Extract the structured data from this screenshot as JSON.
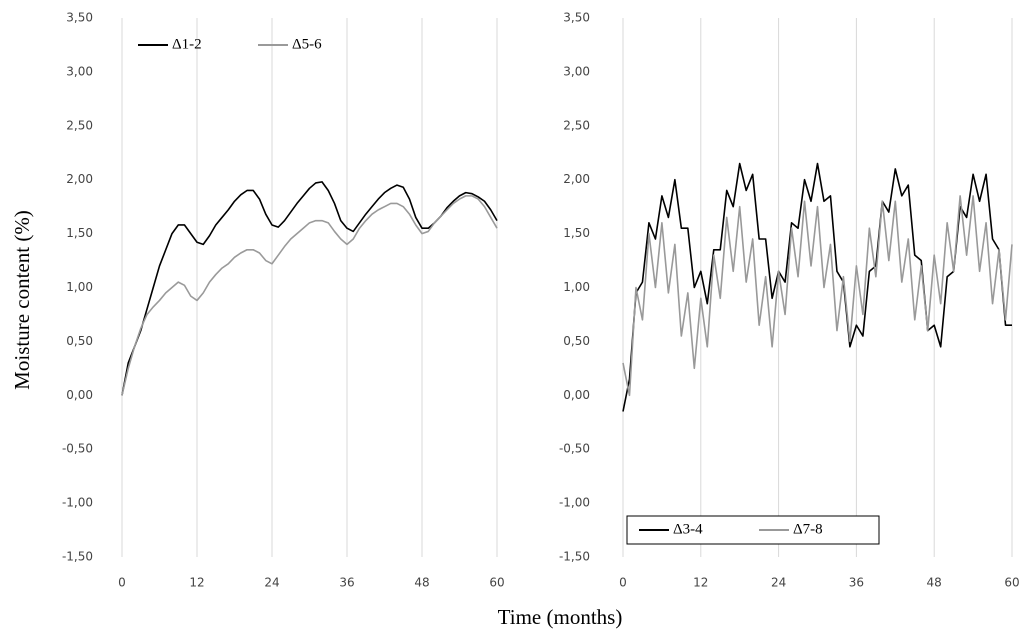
{
  "xlabel": "Time (months)",
  "ylabel": "Moisture content (%)",
  "chart_data": [
    {
      "type": "line",
      "x": [
        0,
        1,
        2,
        3,
        4,
        5,
        6,
        7,
        8,
        9,
        10,
        11,
        12,
        13,
        14,
        15,
        16,
        17,
        18,
        19,
        20,
        21,
        22,
        23,
        24,
        25,
        26,
        27,
        28,
        29,
        30,
        31,
        32,
        33,
        34,
        35,
        36,
        37,
        38,
        39,
        40,
        41,
        42,
        43,
        44,
        45,
        46,
        47,
        48,
        49,
        50,
        51,
        52,
        53,
        54,
        55,
        56,
        57,
        58,
        59,
        60
      ],
      "series": [
        {
          "name": "Δ1-2",
          "color": "#000000",
          "values": [
            0,
            0.3,
            0.45,
            0.6,
            0.8,
            1.0,
            1.2,
            1.35,
            1.5,
            1.58,
            1.58,
            1.5,
            1.42,
            1.4,
            1.48,
            1.58,
            1.65,
            1.72,
            1.8,
            1.86,
            1.9,
            1.9,
            1.82,
            1.68,
            1.58,
            1.56,
            1.62,
            1.7,
            1.78,
            1.85,
            1.92,
            1.97,
            1.98,
            1.9,
            1.78,
            1.62,
            1.55,
            1.52,
            1.6,
            1.68,
            1.75,
            1.82,
            1.88,
            1.92,
            1.95,
            1.93,
            1.82,
            1.65,
            1.55,
            1.55,
            1.6,
            1.66,
            1.74,
            1.8,
            1.85,
            1.88,
            1.87,
            1.84,
            1.8,
            1.72,
            1.62
          ]
        },
        {
          "name": "Δ5-6",
          "color": "#9a9a9a",
          "values": [
            0,
            0.25,
            0.45,
            0.62,
            0.75,
            0.82,
            0.88,
            0.95,
            1.0,
            1.05,
            1.02,
            0.92,
            0.88,
            0.95,
            1.05,
            1.12,
            1.18,
            1.22,
            1.28,
            1.32,
            1.35,
            1.35,
            1.32,
            1.25,
            1.22,
            1.3,
            1.38,
            1.45,
            1.5,
            1.55,
            1.6,
            1.62,
            1.62,
            1.6,
            1.52,
            1.45,
            1.4,
            1.45,
            1.55,
            1.62,
            1.68,
            1.72,
            1.75,
            1.78,
            1.78,
            1.75,
            1.68,
            1.58,
            1.5,
            1.52,
            1.6,
            1.66,
            1.72,
            1.78,
            1.82,
            1.85,
            1.85,
            1.82,
            1.75,
            1.65,
            1.55
          ]
        }
      ],
      "xlim": [
        0,
        60
      ],
      "xticks": [
        0,
        12,
        24,
        36,
        48,
        60
      ],
      "ylim": [
        -1.5,
        3.5
      ],
      "yticks": [
        {
          "value": -1.5,
          "label": "-1,50"
        },
        {
          "value": -1.0,
          "label": "-1,00"
        },
        {
          "value": -0.5,
          "label": "-0,50"
        },
        {
          "value": 0,
          "label": "0,00"
        },
        {
          "value": 0.5,
          "label": "0,50"
        },
        {
          "value": 1.0,
          "label": "1,00"
        },
        {
          "value": 1.5,
          "label": "1,50"
        },
        {
          "value": 2.0,
          "label": "2,00"
        },
        {
          "value": 2.5,
          "label": "2,50"
        },
        {
          "value": 3.0,
          "label": "3,00"
        },
        {
          "value": 3.5,
          "label": "3,50"
        }
      ],
      "grid": "x",
      "legend": "upper left",
      "legend_box": false
    },
    {
      "type": "line",
      "x": [
        0,
        1,
        2,
        3,
        4,
        5,
        6,
        7,
        8,
        9,
        10,
        11,
        12,
        13,
        14,
        15,
        16,
        17,
        18,
        19,
        20,
        21,
        22,
        23,
        24,
        25,
        26,
        27,
        28,
        29,
        30,
        31,
        32,
        33,
        34,
        35,
        36,
        37,
        38,
        39,
        40,
        41,
        42,
        43,
        44,
        45,
        46,
        47,
        48,
        49,
        50,
        51,
        52,
        53,
        54,
        55,
        56,
        57,
        58,
        59,
        60
      ],
      "series": [
        {
          "name": "Δ3-4",
          "color": "#000000",
          "values": [
            -0.15,
            0.15,
            0.95,
            1.05,
            1.6,
            1.45,
            1.85,
            1.65,
            2.0,
            1.55,
            1.55,
            1.0,
            1.15,
            0.85,
            1.35,
            1.35,
            1.9,
            1.75,
            2.15,
            1.9,
            2.05,
            1.45,
            1.45,
            0.9,
            1.15,
            1.05,
            1.6,
            1.55,
            2.0,
            1.8,
            2.15,
            1.8,
            1.85,
            1.15,
            1.05,
            0.45,
            0.65,
            0.55,
            1.15,
            1.2,
            1.8,
            1.7,
            2.1,
            1.85,
            1.95,
            1.3,
            1.25,
            0.6,
            0.65,
            0.45,
            1.1,
            1.15,
            1.75,
            1.65,
            2.05,
            1.8,
            2.05,
            1.45,
            1.35,
            0.65,
            0.65
          ]
        },
        {
          "name": "Δ7-8",
          "color": "#999999",
          "values": [
            0.3,
            0.0,
            1.0,
            0.7,
            1.5,
            1.0,
            1.6,
            0.95,
            1.4,
            0.55,
            0.95,
            0.25,
            0.9,
            0.45,
            1.3,
            0.9,
            1.65,
            1.15,
            1.75,
            1.05,
            1.45,
            0.65,
            1.1,
            0.45,
            1.15,
            0.75,
            1.55,
            1.1,
            1.8,
            1.2,
            1.75,
            1.0,
            1.4,
            0.6,
            1.1,
            0.5,
            1.2,
            0.75,
            1.55,
            1.1,
            1.8,
            1.25,
            1.8,
            1.05,
            1.45,
            0.7,
            1.2,
            0.6,
            1.3,
            0.85,
            1.6,
            1.15,
            1.85,
            1.3,
            1.85,
            1.15,
            1.6,
            0.85,
            1.35,
            0.7,
            1.4
          ]
        }
      ],
      "xlim": [
        0,
        60
      ],
      "xticks": [
        0,
        12,
        24,
        36,
        48,
        60
      ],
      "ylim": [
        -1.5,
        3.5
      ],
      "yticks": [
        {
          "value": -1.5,
          "label": "-1,50"
        },
        {
          "value": -1.0,
          "label": "-1,00"
        },
        {
          "value": -0.5,
          "label": "-0,50"
        },
        {
          "value": 0,
          "label": "0,00"
        },
        {
          "value": 0.5,
          "label": "0,50"
        },
        {
          "value": 1.0,
          "label": "1,00"
        },
        {
          "value": 1.5,
          "label": "1,50"
        },
        {
          "value": 2.0,
          "label": "2,00"
        },
        {
          "value": 2.5,
          "label": "2,50"
        },
        {
          "value": 3.0,
          "label": "3,00"
        },
        {
          "value": 3.5,
          "label": "3,50"
        }
      ],
      "grid": "x",
      "legend": "lower left",
      "legend_box": true
    }
  ]
}
